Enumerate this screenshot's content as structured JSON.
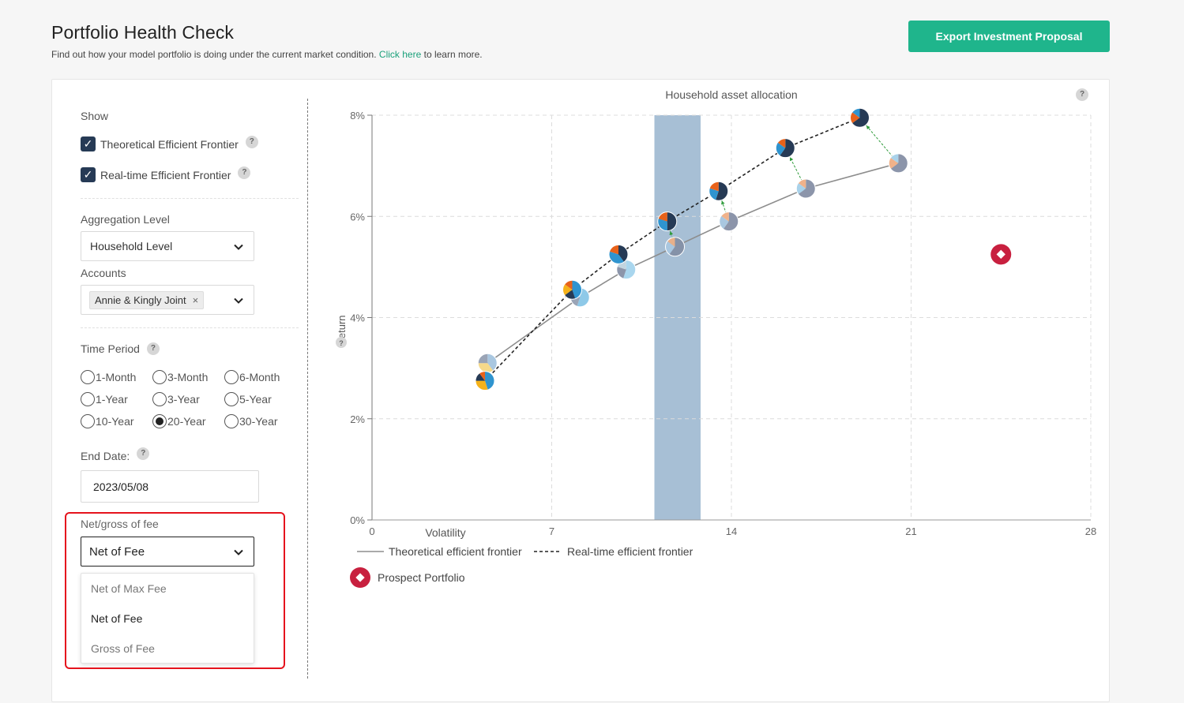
{
  "header": {
    "title": "Portfolio Health Check",
    "subtitle_pre": "Find out how your model portfolio is doing under the current market condition.",
    "subtitle_link": "Click here",
    "subtitle_post": "to learn more.",
    "export_label": "Export Investment Proposal"
  },
  "sidebar": {
    "show_label": "Show",
    "checkboxes": [
      {
        "label": "Theoretical Efficient Frontier",
        "checked": true
      },
      {
        "label": "Real-time Efficient Frontier",
        "checked": true
      }
    ],
    "aggregation_label": "Aggregation Level",
    "aggregation_value": "Household Level",
    "accounts_label": "Accounts",
    "accounts_tag": "Annie & Kingly Joint",
    "tag_remove": "×",
    "time_period_label": "Time Period",
    "time_periods": [
      "1-Month",
      "3-Month",
      "6-Month",
      "1-Year",
      "3-Year",
      "5-Year",
      "10-Year",
      "20-Year",
      "30-Year"
    ],
    "time_period_selected": "20-Year",
    "end_date_label": "End Date:",
    "end_date_value": "2023/05/08",
    "fee_label": "Net/gross of fee",
    "fee_value": "Net of Fee",
    "fee_options": [
      "Net of Max Fee",
      "Net of Fee",
      "Gross of Fee"
    ],
    "help_glyph": "?"
  },
  "colors": {
    "accent": "#1fb58c",
    "highlight": "#e5131d",
    "prospect": "#c8203f",
    "band": "#a7bfd5",
    "navy": "#263a55"
  },
  "chart_data": {
    "type": "scatter",
    "title": "Household asset allocation",
    "xlabel": "Volatility",
    "ylabel": "Return",
    "xlim": [
      0,
      28
    ],
    "ylim": [
      0,
      8
    ],
    "x_ticks": [
      "0",
      "7",
      "14",
      "21",
      "28"
    ],
    "y_ticks": [
      "0%",
      "2%",
      "4%",
      "6%",
      "8%"
    ],
    "grid": true,
    "highlight_band_x": [
      11,
      12.8
    ],
    "series": [
      {
        "name": "Theoretical efficient frontier",
        "style": "solid",
        "points": [
          [
            4.5,
            3.1
          ],
          [
            8.1,
            4.4
          ],
          [
            9.9,
            4.95
          ],
          [
            11.8,
            5.4
          ],
          [
            13.9,
            5.9
          ],
          [
            16.9,
            6.55
          ],
          [
            20.5,
            7.05
          ]
        ]
      },
      {
        "name": "Real-time efficient frontier",
        "style": "dashed",
        "points": [
          [
            4.4,
            2.75
          ],
          [
            7.8,
            4.55
          ],
          [
            9.6,
            5.25
          ],
          [
            11.5,
            5.9
          ],
          [
            13.5,
            6.5
          ],
          [
            16.1,
            7.35
          ],
          [
            19,
            7.95
          ]
        ]
      },
      {
        "name": "Prospect Portfolio",
        "style": "marker",
        "points": [
          [
            24.5,
            5.25
          ]
        ]
      }
    ],
    "legend": [
      "Theoretical efficient frontier",
      "Real-time efficient frontier",
      "Prospect Portfolio"
    ],
    "legend_position": "bottom-left"
  }
}
